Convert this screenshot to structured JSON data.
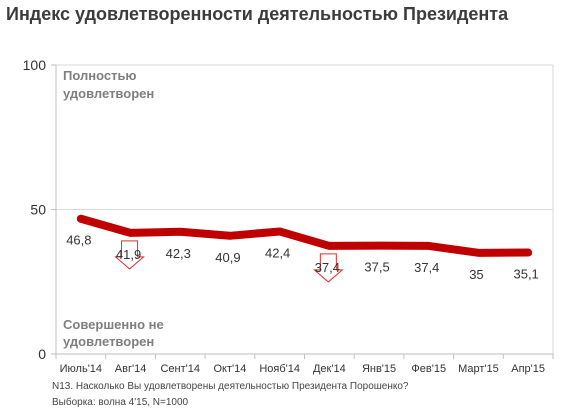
{
  "title": "Индекс удовлетворенности деятельностью Президента",
  "annotations": {
    "top_line1": "Полностью",
    "top_line2": "удовлетворен",
    "bottom_line1": "Совершенно  не",
    "bottom_line2": "удовлетворен"
  },
  "footnotes": {
    "question": "N13. Насколько  Вы удовлетворены деятельностью Президента Порошенко?",
    "sample": "Выборка: волна 4'15, N=1000"
  },
  "colors": {
    "line": "#c00000",
    "arrow": "#e03030",
    "grid": "#d9d9d9",
    "axis_text": "#333333",
    "annotation_text": "#7f7f7f"
  },
  "chart_data": {
    "type": "line",
    "categories": [
      "Июль'14",
      "Авг'14",
      "Сент'14",
      "Окт'14",
      "Нояб'14",
      "Дек'14",
      "Янв'15",
      "Фев'15",
      "Март'15",
      "Апр'15"
    ],
    "values": [
      46.8,
      41.9,
      42.3,
      40.9,
      42.4,
      37.4,
      37.5,
      37.4,
      35,
      35.1
    ],
    "data_labels": [
      "46,8",
      "41,9",
      "42,3",
      "40,9",
      "42,4",
      "37,4",
      "37,5",
      "37,4",
      "35",
      "35,1"
    ],
    "ylim": [
      0,
      100
    ],
    "yticks": [
      "0",
      "50",
      "100"
    ],
    "grid": true,
    "down_arrows_at": [
      "Авг'14",
      "Дек'14"
    ]
  }
}
